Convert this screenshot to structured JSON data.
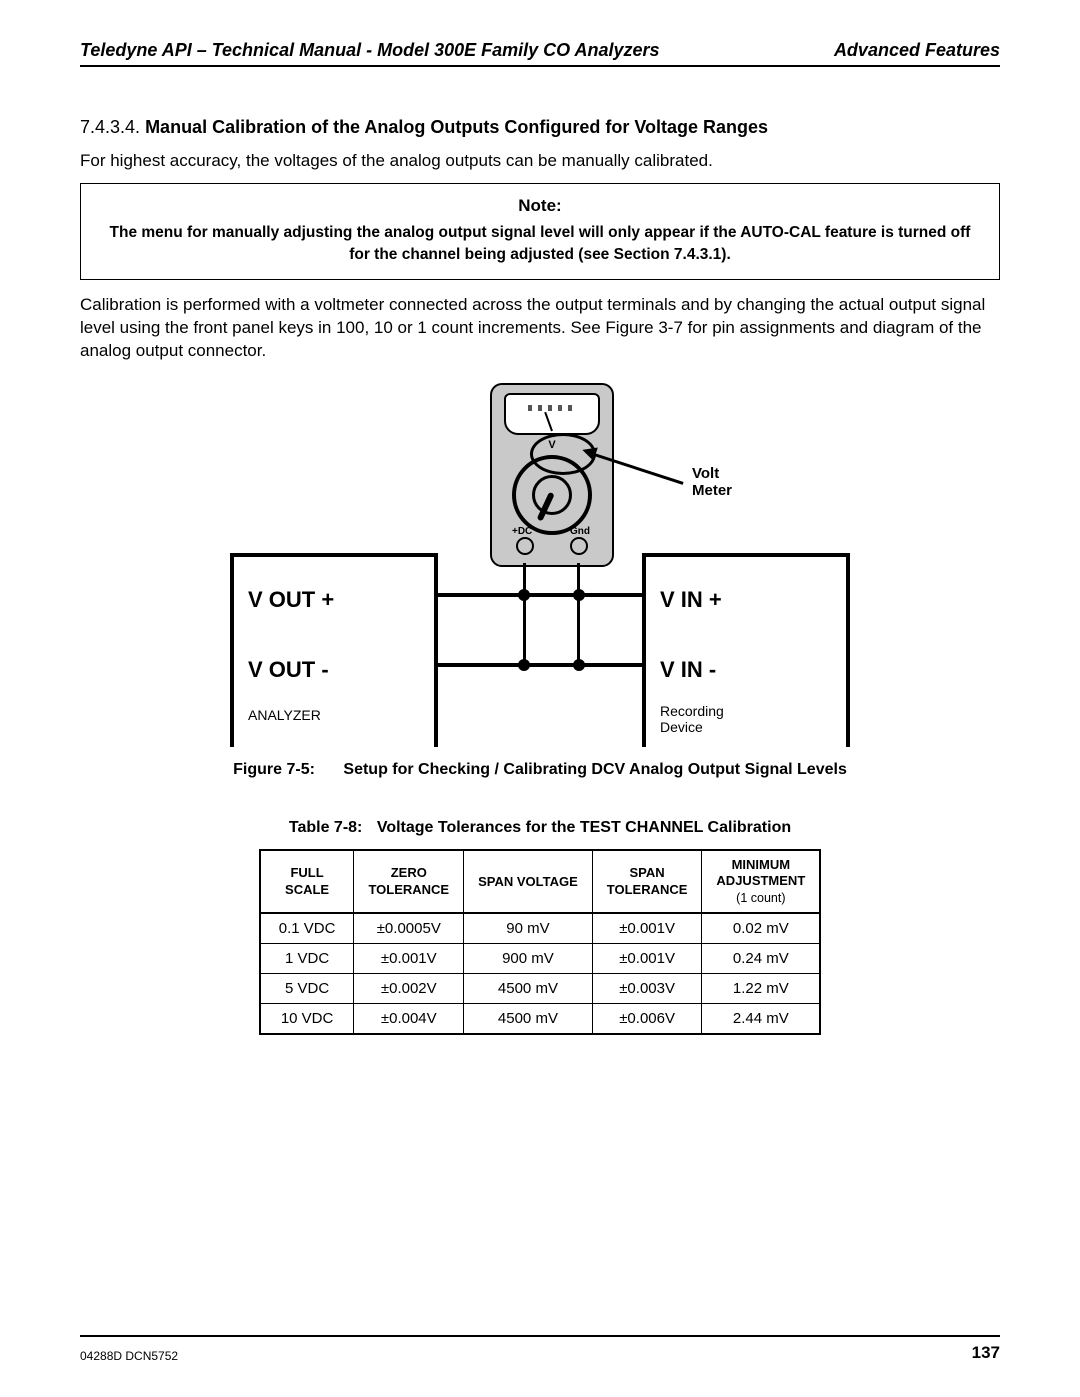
{
  "header": {
    "left": "Teledyne API – Technical Manual - Model 300E Family CO Analyzers",
    "right": "Advanced Features"
  },
  "section": {
    "number": "7.4.3.4.",
    "title": "Manual Calibration of the Analog Outputs Configured for Voltage Ranges",
    "intro": "For highest accuracy, the voltages of the analog outputs can be manually calibrated."
  },
  "note": {
    "title": "Note:",
    "text": "The menu for manually adjusting the analog output signal level will only appear if the AUTO-CAL feature is turned off for the channel being adjusted (see Section 7.4.3.1)."
  },
  "para2": "Calibration is performed with a voltmeter connected across the output terminals and by changing the actual output signal level using the front panel keys in 100, 10 or 1 count increments.  See Figure 3-7 for pin assignments and diagram of the analog output connector.",
  "diagram": {
    "vout_plus": "V OUT +",
    "vout_minus": "V OUT -",
    "vin_plus": "V IN +",
    "vin_minus": "V IN -",
    "analyzer": "ANALYZER",
    "recorder_l1": "Recording",
    "recorder_l2": "Device",
    "meter_v": "V",
    "meter_dc": "+DC",
    "meter_gnd": "Gnd",
    "callout_l1": "Volt",
    "callout_l2": "Meter"
  },
  "figure": {
    "num": "Figure 7-5:",
    "title": "Setup for Checking / Calibrating DCV Analog Output Signal Levels"
  },
  "table": {
    "num": "Table 7-8:",
    "title": "Voltage Tolerances for the TEST CHANNEL Calibration",
    "columns": [
      {
        "l1": "FULL",
        "l2": "SCALE"
      },
      {
        "l1": "ZERO",
        "l2": "TOLERANCE"
      },
      {
        "l1": "SPAN VOLTAGE",
        "l2": ""
      },
      {
        "l1": "SPAN",
        "l2": "TOLERANCE"
      },
      {
        "l1": "MINIMUM",
        "l2": "ADJUSTMENT",
        "sub": "(1 count)"
      }
    ],
    "rows": [
      [
        "0.1 VDC",
        "±0.0005V",
        "90 mV",
        "±0.001V",
        "0.02 mV"
      ],
      [
        "1 VDC",
        "±0.001V",
        "900 mV",
        "±0.001V",
        "0.24 mV"
      ],
      [
        "5 VDC",
        "±0.002V",
        "4500 mV",
        "±0.003V",
        "1.22 mV"
      ],
      [
        "10 VDC",
        "±0.004V",
        "4500 mV",
        "±0.006V",
        "2.44 mV"
      ]
    ]
  },
  "footer": {
    "docid": "04288D DCN5752",
    "page": "137"
  }
}
